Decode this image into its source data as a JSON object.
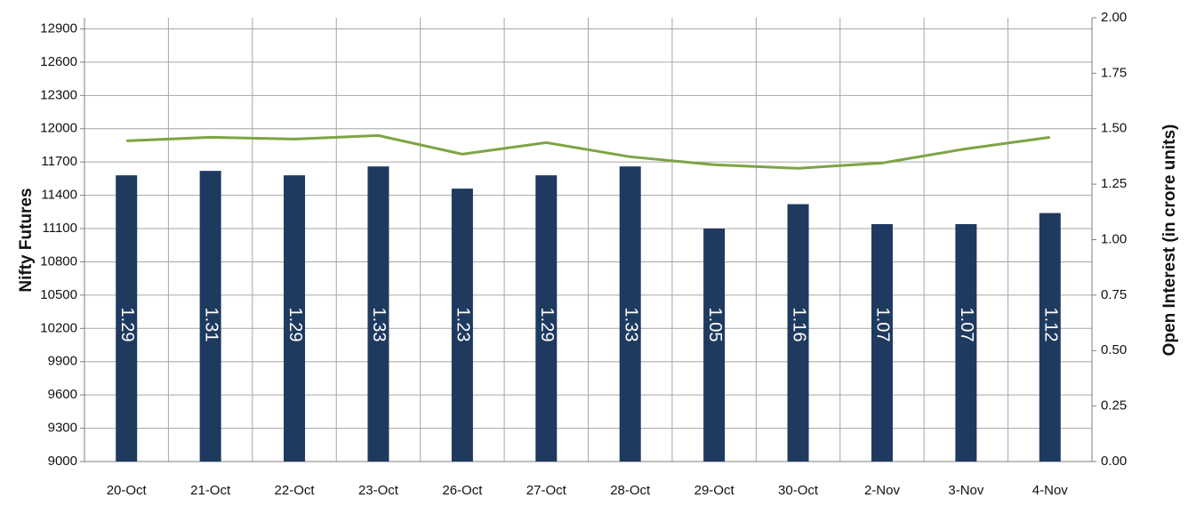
{
  "chart_data": {
    "type": "bar",
    "categories": [
      "20-Oct",
      "21-Oct",
      "22-Oct",
      "23-Oct",
      "26-Oct",
      "27-Oct",
      "28-Oct",
      "29-Oct",
      "30-Oct",
      "2-Nov",
      "3-Nov",
      "4-Nov"
    ],
    "series": [
      {
        "name": "Open Interest",
        "type": "bar",
        "axis": "y2",
        "color": "#1f3a5f",
        "values": [
          1.29,
          1.31,
          1.29,
          1.33,
          1.23,
          1.29,
          1.33,
          1.05,
          1.16,
          1.07,
          1.07,
          1.12
        ]
      },
      {
        "name": "Nifty Futures",
        "type": "line",
        "axis": "y",
        "color": "#7da444",
        "values": [
          11891,
          11923,
          11907,
          11939,
          11771,
          11875,
          11747,
          11675,
          11643,
          11691,
          11819,
          11923
        ]
      }
    ],
    "y_label": "Nifty Futures",
    "y2_label": "Open Interest (in crore units)",
    "ylim": [
      9000,
      13000
    ],
    "yticks": [
      9000,
      9300,
      9600,
      9900,
      10200,
      10500,
      10800,
      11100,
      11400,
      11700,
      12000,
      12300,
      12600,
      12900
    ],
    "y2lim": [
      0,
      2
    ],
    "y2ticks": [
      {
        "value": 0,
        "label": "0.00"
      },
      {
        "value": 0.25,
        "label": "0.25"
      },
      {
        "value": 0.5,
        "label": "0.50"
      },
      {
        "value": 0.75,
        "label": "0.75"
      },
      {
        "value": 1,
        "label": "1.00"
      },
      {
        "value": 1.25,
        "label": "1.25"
      },
      {
        "value": 1.5,
        "label": "1.50"
      },
      {
        "value": 1.75,
        "label": "1.75"
      },
      {
        "value": 2,
        "label": "2.00"
      }
    ],
    "grid": true
  }
}
